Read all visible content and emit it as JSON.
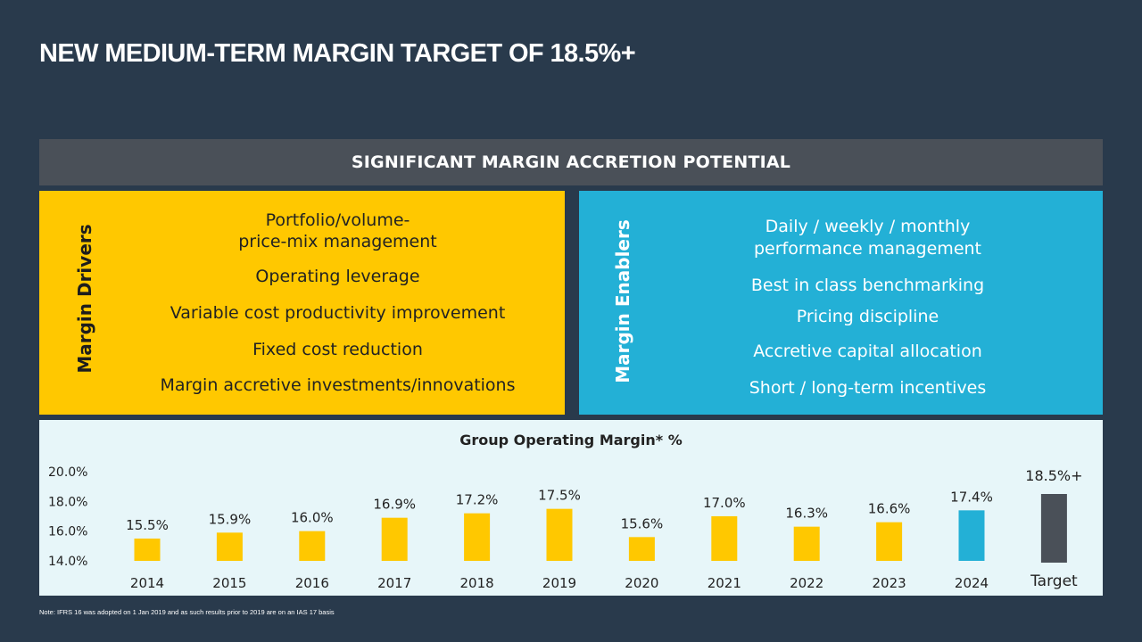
{
  "title": "NEW MEDIUM-TERM MARGIN TARGET OF 18.5%+",
  "banner": "SIGNIFICANT MARGIN ACCRETION POTENTIAL",
  "drivers": {
    "label": "Margin Drivers",
    "items": [
      "Portfolio/volume-",
      "price-mix management",
      "Operating leverage",
      "Variable cost productivity improvement",
      "Fixed cost reduction",
      "Margin accretive investments/innovations"
    ]
  },
  "enablers": {
    "label": "Margin Enablers",
    "items": [
      "Daily / weekly / monthly",
      "performance management",
      "Best in class benchmarking",
      "Pricing discipline",
      "Accretive capital allocation",
      "Short / long-term incentives"
    ]
  },
  "colors": {
    "bar_default": "#ffc800",
    "bar_2024": "#23b0d6",
    "bar_target": "#4a5058"
  },
  "chart_data": {
    "type": "bar",
    "title": "Group Operating Margin* %",
    "categories": [
      "2014",
      "2015",
      "2016",
      "2017",
      "2018",
      "2019",
      "2020",
      "2021",
      "2022",
      "2023",
      "2024",
      "Target"
    ],
    "values": [
      15.5,
      15.9,
      16.0,
      16.9,
      17.2,
      17.5,
      15.6,
      17.0,
      16.3,
      16.6,
      17.4,
      18.5
    ],
    "data_labels": [
      "15.5%",
      "15.9%",
      "16.0%",
      "16.9%",
      "17.2%",
      "17.5%",
      "15.6%",
      "17.0%",
      "16.3%",
      "16.6%",
      "17.4%",
      "18.5%+"
    ],
    "ylim": [
      14.0,
      20.0
    ],
    "yticks": [
      "14.0%",
      "16.0%",
      "18.0%",
      "20.0%"
    ],
    "ytick_values": [
      14.0,
      16.0,
      18.0,
      20.0
    ],
    "xlabel": "",
    "ylabel": "",
    "grid": false,
    "legend": "none"
  },
  "footnote": "Note: IFRS 16 was adopted on 1 Jan 2019 and as such results prior to 2019 are on an IAS 17 basis"
}
